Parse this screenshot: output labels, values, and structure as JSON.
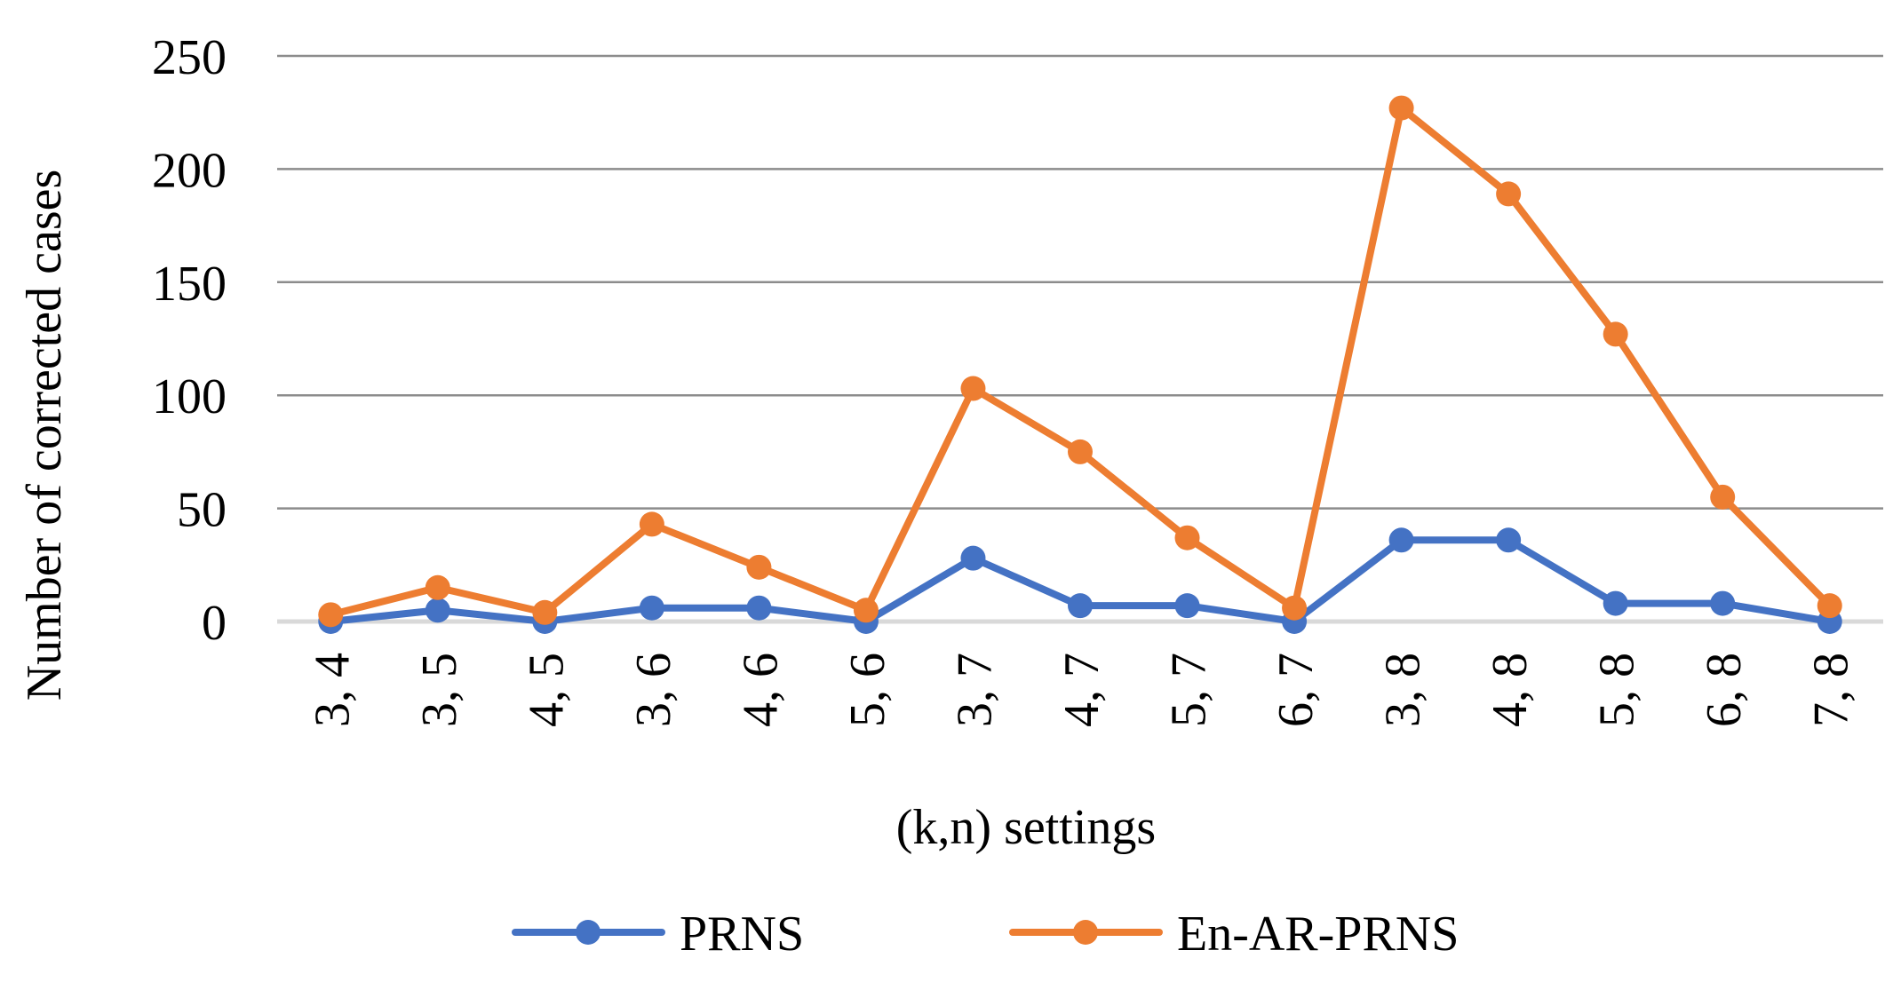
{
  "chart_data": {
    "type": "line",
    "title": "",
    "xlabel": "(k,n) settings",
    "ylabel": "Number of corrected cases",
    "categories": [
      "3, 4",
      "3, 5",
      "4, 5",
      "3, 6",
      "4, 6",
      "5, 6",
      "3, 7",
      "4, 7",
      "5, 7",
      "6, 7",
      "3, 8",
      "4, 8",
      "5, 8",
      "6, 8",
      "7, 8"
    ],
    "ylim": [
      0,
      250
    ],
    "yticks": [
      "0",
      "50",
      "100",
      "150",
      "200",
      "250"
    ],
    "grid": true,
    "legend": "bottom",
    "series": [
      {
        "name": "PRNS",
        "color": "#4472C4",
        "values": [
          0,
          5,
          0,
          6,
          6,
          0,
          28,
          7,
          7,
          0,
          36,
          36,
          8,
          8,
          0
        ]
      },
      {
        "name": "En-AR-PRNS",
        "color": "#ED7D31",
        "values": [
          3,
          15,
          4,
          43,
          24,
          5,
          103,
          75,
          37,
          6,
          227,
          189,
          127,
          55,
          7
        ]
      }
    ]
  }
}
